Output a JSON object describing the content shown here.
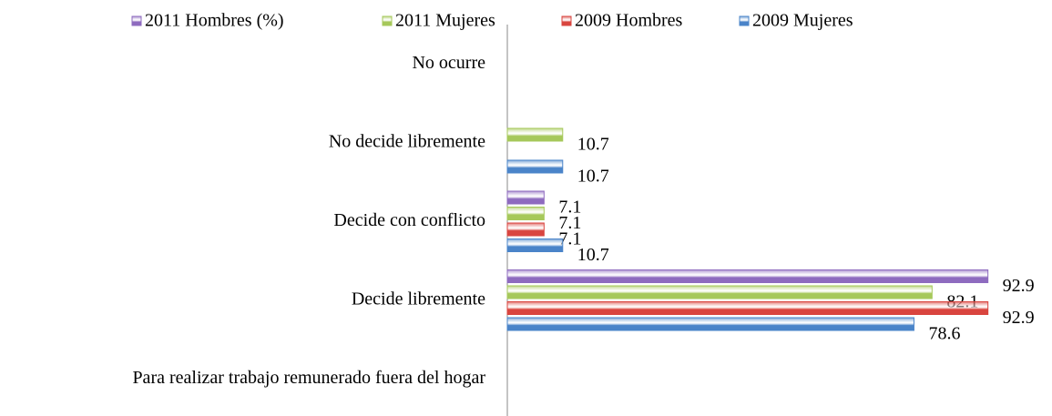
{
  "chart_data": {
    "type": "barh",
    "categories": [
      "No ocurre",
      "No decide libremente",
      "Decide con conflicto",
      "Decide libremente",
      "Para realizar trabajo remunerado fuera del hogar"
    ],
    "series": [
      {
        "name": "2011 Hombres (%)",
        "color": "#8e6bbf",
        "values": [
          null,
          null,
          7.1,
          92.9,
          null
        ]
      },
      {
        "name": "2011 Mujeres",
        "color": "#a6c85a",
        "values": [
          null,
          10.7,
          7.1,
          82.1,
          null
        ]
      },
      {
        "name": "2009 Hombres",
        "color": "#d9453f",
        "values": [
          null,
          null,
          7.1,
          92.9,
          null
        ]
      },
      {
        "name": "2009 Mujeres",
        "color": "#4a84c9",
        "values": [
          null,
          10.7,
          10.7,
          78.6,
          null
        ]
      }
    ],
    "xlim": [
      0,
      100
    ],
    "legend": "top"
  }
}
